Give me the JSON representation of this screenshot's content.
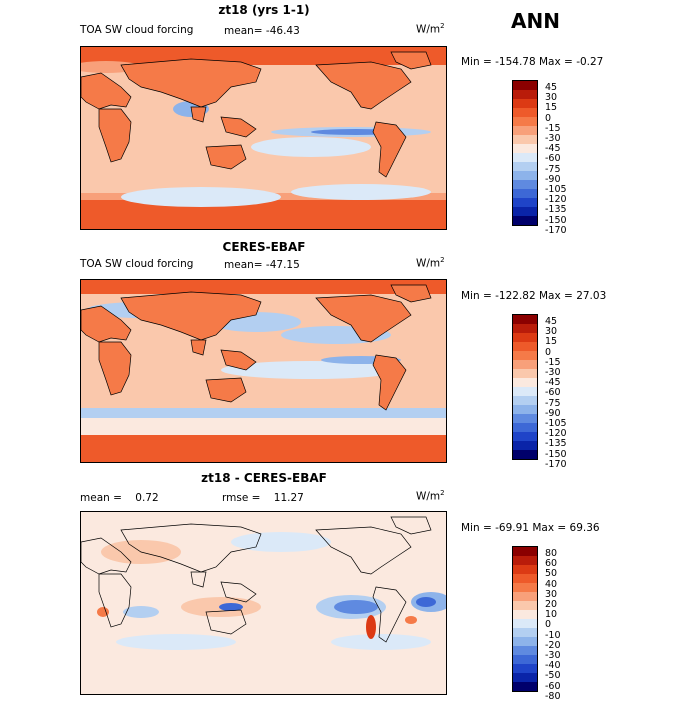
{
  "season": "ANN",
  "panels": [
    {
      "title": "zt18 (yrs 1-1)",
      "left_label": "TOA SW cloud forcing",
      "mean_label": "mean=",
      "mean_value": "-46.43",
      "rmse_label": "",
      "rmse_value": "",
      "units": "W/m",
      "units_exp": "2",
      "min_label": "Min =",
      "min_value": "-154.78",
      "max_label": "Max =",
      "max_value": "-0.27",
      "levels": [
        "45",
        "30",
        "15",
        "0",
        "-15",
        "-30",
        "-45",
        "-60",
        "-75",
        "-90",
        "-105",
        "-120",
        "-135",
        "-150",
        "-170"
      ],
      "colors": [
        "#8b0000",
        "#b91c0a",
        "#dc3a14",
        "#ee5a2a",
        "#f57a48",
        "#f8a07a",
        "#fac8ac",
        "#fbe9df",
        "#dbe9f8",
        "#b3cff1",
        "#8db3ea",
        "#5f8ae0",
        "#3d68d6",
        "#1f44c8",
        "#0a24a8",
        "#00006b"
      ]
    },
    {
      "title": "CERES-EBAF",
      "left_label": "TOA SW cloud forcing",
      "mean_label": "mean=",
      "mean_value": "-47.15",
      "rmse_label": "",
      "rmse_value": "",
      "units": "W/m",
      "units_exp": "2",
      "min_label": "Min =",
      "min_value": "-122.82",
      "max_label": "Max =",
      "max_value": "27.03",
      "levels": [
        "45",
        "30",
        "15",
        "0",
        "-15",
        "-30",
        "-45",
        "-60",
        "-75",
        "-90",
        "-105",
        "-120",
        "-135",
        "-150",
        "-170"
      ],
      "colors": [
        "#8b0000",
        "#b91c0a",
        "#dc3a14",
        "#ee5a2a",
        "#f57a48",
        "#f8a07a",
        "#fac8ac",
        "#fbe9df",
        "#dbe9f8",
        "#b3cff1",
        "#8db3ea",
        "#5f8ae0",
        "#3d68d6",
        "#1f44c8",
        "#0a24a8",
        "#00006b"
      ]
    },
    {
      "title": "zt18 - CERES-EBAF",
      "left_label": "",
      "mean_label": "mean =",
      "mean_value": "0.72",
      "rmse_label": "rmse =",
      "rmse_value": "11.27",
      "units": "W/m",
      "units_exp": "2",
      "min_label": "Min =",
      "min_value": "-69.91",
      "max_label": "Max =",
      "max_value": "69.36",
      "levels": [
        "80",
        "60",
        "50",
        "40",
        "30",
        "20",
        "10",
        "0",
        "-10",
        "-20",
        "-30",
        "-40",
        "-50",
        "-60",
        "-80"
      ],
      "colors": [
        "#8b0000",
        "#b91c0a",
        "#dc3a14",
        "#ee5a2a",
        "#f57a48",
        "#f8a07a",
        "#fac8ac",
        "#fbe9df",
        "#dbe9f8",
        "#b3cff1",
        "#8db3ea",
        "#5f8ae0",
        "#3d68d6",
        "#1f44c8",
        "#0a24a8",
        "#00006b"
      ]
    }
  ]
}
